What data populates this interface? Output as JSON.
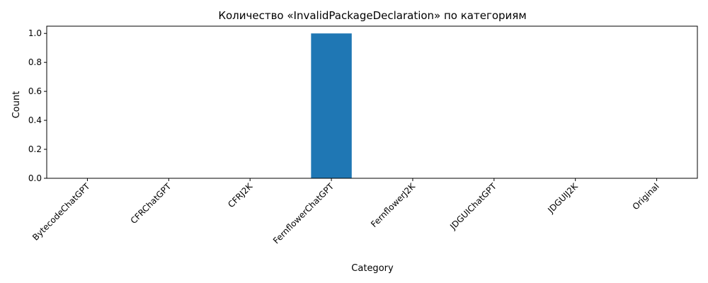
{
  "chart_data": {
    "type": "bar",
    "title": "Количество «InvalidPackageDeclaration» по категориям",
    "xlabel": "Category",
    "ylabel": "Count",
    "categories": [
      "BytecodeChatGPT",
      "CFRChatGPT",
      "CFRJ2K",
      "FernflowerChatGPT",
      "FernflowerJ2K",
      "JDGUIChatGPT",
      "JDGUIJ2K",
      "Original"
    ],
    "values": [
      0,
      0,
      0,
      1,
      0,
      0,
      0,
      0
    ],
    "ylim": [
      0,
      1.05
    ],
    "yticks": [
      "0.0",
      "0.2",
      "0.4",
      "0.6",
      "0.8",
      "1.0"
    ],
    "ytick_values": [
      0,
      0.2,
      0.4,
      0.6,
      0.8,
      1.0
    ],
    "grid": false,
    "legend": "none",
    "colors": {
      "bar": "#1f77b4",
      "axis": "#000000"
    }
  }
}
